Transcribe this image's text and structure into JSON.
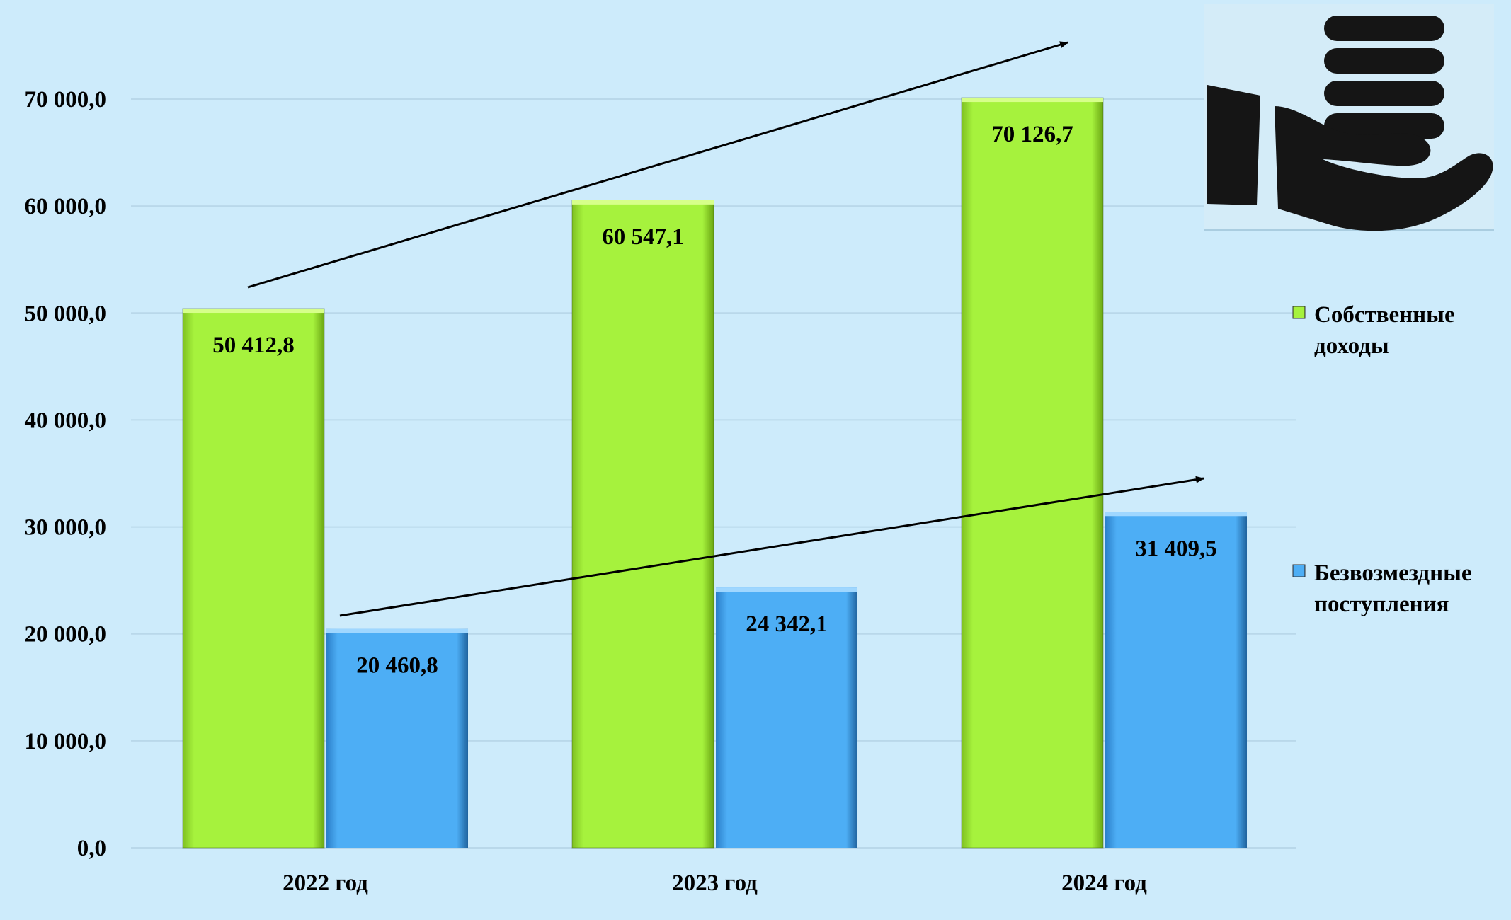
{
  "chart_data": {
    "type": "bar",
    "title": "",
    "categories": [
      "2022 год",
      "2023 год",
      "2024 год"
    ],
    "series": [
      {
        "name": "Собственные доходы",
        "legend_lines": [
          "Собственные",
          "доходы"
        ],
        "values": [
          50412.8,
          60547.1,
          70126.7
        ],
        "labels": [
          "50 412,8",
          "60 547,1",
          "70 126,7"
        ],
        "color": "#a6f23d"
      },
      {
        "name": "Безвозмездные поступления",
        "legend_lines": [
          "Безвозмездные",
          "поступления"
        ],
        "values": [
          20460.8,
          24342.1,
          31409.5
        ],
        "labels": [
          "20 460,8",
          "24 342,1",
          "31 409,5"
        ],
        "color": "#4daef5"
      }
    ],
    "ylim": [
      0,
      70000
    ],
    "yticks": [
      0,
      10000,
      20000,
      30000,
      40000,
      50000,
      60000,
      70000
    ],
    "ytick_labels": [
      "0,0",
      "10 000,0",
      "20 000,0",
      "30 000,0",
      "40 000,0",
      "50 000,0",
      "60 000,0",
      "70 000,0"
    ],
    "grid": true,
    "legend_position": "right",
    "trend_arrows": true,
    "background": "#cdebfb"
  },
  "icon": "hand-holding-coins-icon"
}
